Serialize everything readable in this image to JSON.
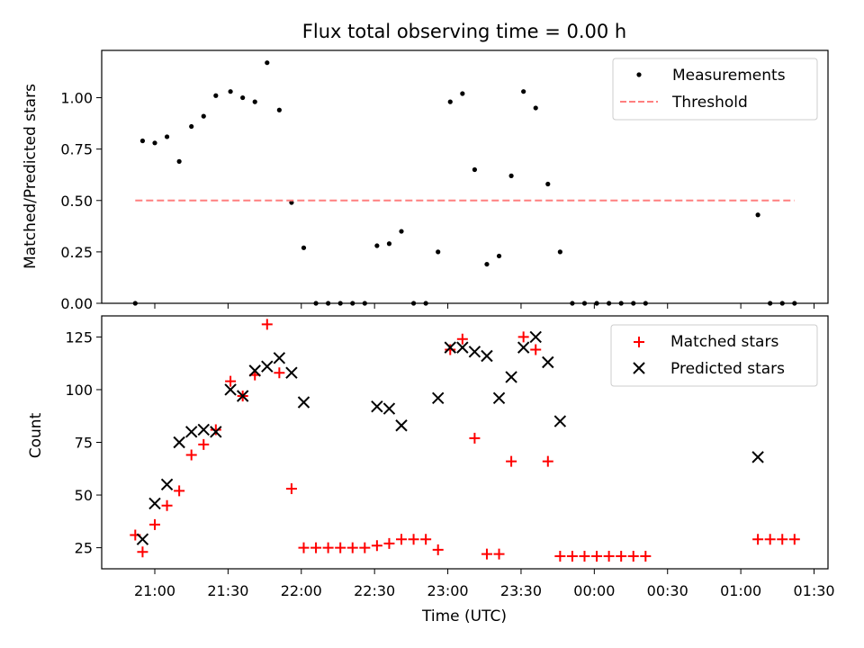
{
  "chart_data": [
    {
      "type": "scatter",
      "title": "Flux total observing time = 0.00 h",
      "xlabel": "",
      "ylabel": "Matched/Predicted stars",
      "x_axis": "time (UTC)",
      "ylim": [
        0.0,
        1.23
      ],
      "yticks": [
        "0.00",
        "0.25",
        "0.50",
        "0.75",
        "1.00"
      ],
      "legend_position": "top-right",
      "grid": false,
      "series": [
        {
          "name": "Measurements",
          "marker": "dot",
          "color": "#000000",
          "points": [
            [
              "20:52",
              0.0
            ],
            [
              "20:55",
              0.79
            ],
            [
              "21:00",
              0.78
            ],
            [
              "21:05",
              0.81
            ],
            [
              "21:10",
              0.69
            ],
            [
              "21:15",
              0.86
            ],
            [
              "21:20",
              0.91
            ],
            [
              "21:25",
              1.01
            ],
            [
              "21:31",
              1.03
            ],
            [
              "21:36",
              1.0
            ],
            [
              "21:41",
              0.98
            ],
            [
              "21:46",
              1.17
            ],
            [
              "21:51",
              0.94
            ],
            [
              "21:56",
              0.49
            ],
            [
              "22:01",
              0.27
            ],
            [
              "22:06",
              0.0
            ],
            [
              "22:11",
              0.0
            ],
            [
              "22:16",
              0.0
            ],
            [
              "22:21",
              0.0
            ],
            [
              "22:26",
              0.0
            ],
            [
              "22:31",
              0.28
            ],
            [
              "22:36",
              0.29
            ],
            [
              "22:41",
              0.35
            ],
            [
              "22:46",
              0.0
            ],
            [
              "22:51",
              0.0
            ],
            [
              "22:56",
              0.25
            ],
            [
              "23:01",
              0.98
            ],
            [
              "23:06",
              1.02
            ],
            [
              "23:11",
              0.65
            ],
            [
              "23:16",
              0.19
            ],
            [
              "23:21",
              0.23
            ],
            [
              "23:26",
              0.62
            ],
            [
              "23:31",
              1.03
            ],
            [
              "23:36",
              0.95
            ],
            [
              "23:41",
              0.58
            ],
            [
              "23:46",
              0.25
            ],
            [
              "23:51",
              0.0
            ],
            [
              "23:56",
              0.0
            ],
            [
              "00:01",
              0.0
            ],
            [
              "00:06",
              0.0
            ],
            [
              "00:11",
              0.0
            ],
            [
              "00:16",
              0.0
            ],
            [
              "00:21",
              0.0
            ],
            [
              "01:07",
              0.43
            ],
            [
              "01:12",
              0.0
            ],
            [
              "01:17",
              0.0
            ],
            [
              "01:22",
              0.0
            ]
          ]
        },
        {
          "name": "Threshold",
          "marker": "dashed-line",
          "color": "#ff7f7f",
          "points": [
            [
              "20:52",
              0.5
            ],
            [
              "01:22",
              0.5
            ]
          ]
        }
      ]
    },
    {
      "type": "scatter",
      "title": "",
      "xlabel": "Time (UTC)",
      "ylabel": "Count",
      "x_axis": "time (UTC)",
      "ylim": [
        15,
        135
      ],
      "yticks": [
        "25",
        "50",
        "75",
        "100",
        "125"
      ],
      "xticks": [
        "21:00",
        "21:30",
        "22:00",
        "22:30",
        "23:00",
        "23:30",
        "00:00",
        "00:30",
        "01:00",
        "01:30"
      ],
      "legend_position": "top-right",
      "grid": false,
      "series": [
        {
          "name": "Matched stars",
          "marker": "plus",
          "color": "#ff0000",
          "points": [
            [
              "20:52",
              31
            ],
            [
              "20:55",
              23
            ],
            [
              "21:00",
              36
            ],
            [
              "21:05",
              45
            ],
            [
              "21:10",
              52
            ],
            [
              "21:15",
              69
            ],
            [
              "21:20",
              74
            ],
            [
              "21:25",
              81
            ],
            [
              "21:31",
              104
            ],
            [
              "21:36",
              97
            ],
            [
              "21:41",
              107
            ],
            [
              "21:46",
              131
            ],
            [
              "21:51",
              108
            ],
            [
              "21:56",
              53
            ],
            [
              "22:01",
              25
            ],
            [
              "22:06",
              25
            ],
            [
              "22:11",
              25
            ],
            [
              "22:16",
              25
            ],
            [
              "22:21",
              25
            ],
            [
              "22:26",
              25
            ],
            [
              "22:31",
              26
            ],
            [
              "22:36",
              27
            ],
            [
              "22:41",
              29
            ],
            [
              "22:46",
              29
            ],
            [
              "22:51",
              29
            ],
            [
              "22:56",
              24
            ],
            [
              "23:01",
              119
            ],
            [
              "23:06",
              124
            ],
            [
              "23:11",
              77
            ],
            [
              "23:16",
              22
            ],
            [
              "23:21",
              22
            ],
            [
              "23:26",
              66
            ],
            [
              "23:31",
              125
            ],
            [
              "23:36",
              119
            ],
            [
              "23:41",
              66
            ],
            [
              "23:46",
              21
            ],
            [
              "23:51",
              21
            ],
            [
              "23:56",
              21
            ],
            [
              "00:01",
              21
            ],
            [
              "00:06",
              21
            ],
            [
              "00:11",
              21
            ],
            [
              "00:16",
              21
            ],
            [
              "00:21",
              21
            ],
            [
              "01:07",
              29
            ],
            [
              "01:12",
              29
            ],
            [
              "01:17",
              29
            ],
            [
              "01:22",
              29
            ]
          ]
        },
        {
          "name": "Predicted stars",
          "marker": "x",
          "color": "#000000",
          "points": [
            [
              "20:55",
              29
            ],
            [
              "21:00",
              46
            ],
            [
              "21:05",
              55
            ],
            [
              "21:10",
              75
            ],
            [
              "21:15",
              80
            ],
            [
              "21:20",
              81
            ],
            [
              "21:25",
              80
            ],
            [
              "21:31",
              100
            ],
            [
              "21:36",
              97
            ],
            [
              "21:41",
              109
            ],
            [
              "21:46",
              111
            ],
            [
              "21:51",
              115
            ],
            [
              "21:56",
              108
            ],
            [
              "22:01",
              94
            ],
            [
              "22:31",
              92
            ],
            [
              "22:36",
              91
            ],
            [
              "22:41",
              83
            ],
            [
              "22:56",
              96
            ],
            [
              "23:01",
              120
            ],
            [
              "23:06",
              120
            ],
            [
              "23:11",
              118
            ],
            [
              "23:16",
              116
            ],
            [
              "23:21",
              96
            ],
            [
              "23:26",
              106
            ],
            [
              "23:31",
              120
            ],
            [
              "23:36",
              125
            ],
            [
              "23:41",
              113
            ],
            [
              "23:46",
              85
            ],
            [
              "01:07",
              68
            ]
          ]
        }
      ]
    }
  ]
}
